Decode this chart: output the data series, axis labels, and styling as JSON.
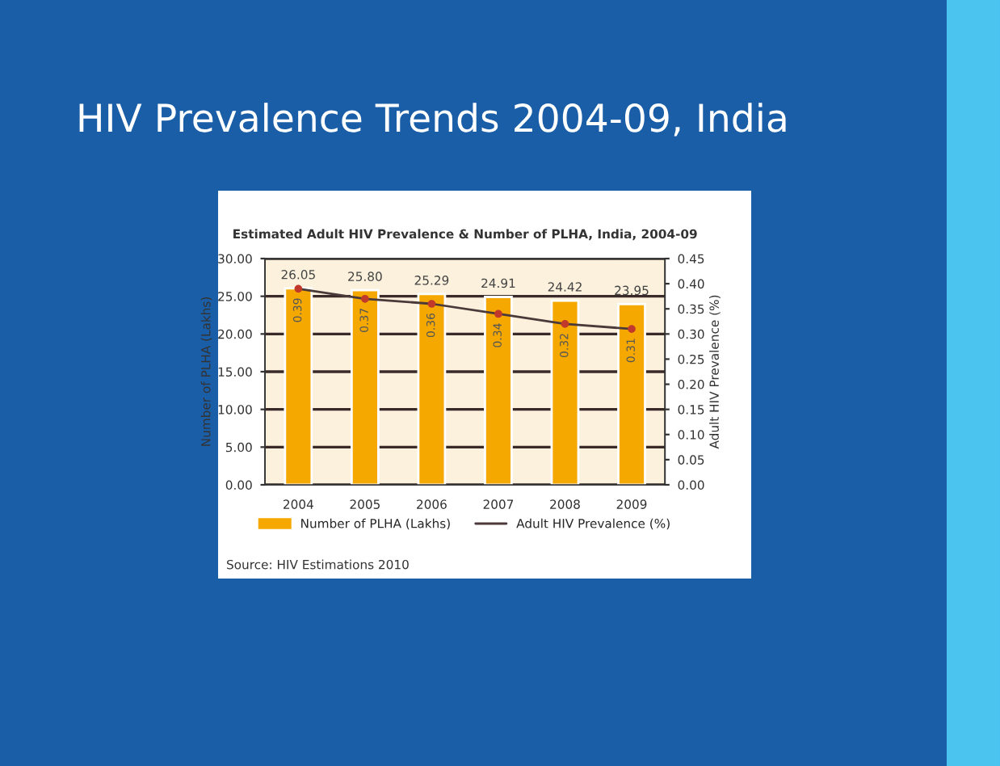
{
  "chart_data": {
    "type": "bar",
    "title": "HIV Prevalence Trends 2004-09, India",
    "subtitle": "Estimated Adult HIV Prevalence & Number of PLHA, India, 2004-09",
    "ylabel": "Number of PLHA (Lakhs)",
    "y2label": "Adult HIV Prevalence (%)",
    "categories": [
      "2004",
      "2005",
      "2006",
      "2007",
      "2008",
      "2009"
    ],
    "series": [
      {
        "name": "Number of PLHA (Lakhs)",
        "color": "#f5a800",
        "values": [
          26.05,
          25.8,
          25.29,
          24.91,
          24.42,
          23.95
        ],
        "value_labels": [
          "26.05",
          "25.80",
          "25.29",
          "24.91",
          "24.42",
          "23.95"
        ]
      },
      {
        "name": "Adult HIV Prevalence (%)",
        "type": "line",
        "axis": "y2",
        "color": "#4a3a3a",
        "marker": "circle",
        "values": [
          0.39,
          0.37,
          0.36,
          0.34,
          0.32,
          0.31
        ],
        "value_labels": [
          "0.39",
          "0.37",
          "0.36",
          "0.34",
          "0.32",
          "0.31"
        ]
      }
    ],
    "ylim": [
      0,
      30
    ],
    "yticks": [
      {
        "value": 0,
        "label": "0.00"
      },
      {
        "value": 5,
        "label": "5.00"
      },
      {
        "value": 10,
        "label": "10.00"
      },
      {
        "value": 15,
        "label": "15.00"
      },
      {
        "value": 20,
        "label": "20.00"
      },
      {
        "value": 25,
        "label": "25.00"
      },
      {
        "value": 30,
        "label": "30.00"
      }
    ],
    "y2lim": [
      0,
      0.45
    ],
    "y2ticks": [
      {
        "value": 0,
        "label": "0.00"
      },
      {
        "value": 0.05,
        "label": "0.05"
      },
      {
        "value": 0.1,
        "label": "0.10"
      },
      {
        "value": 0.15,
        "label": "0.15"
      },
      {
        "value": 0.2,
        "label": "0.20"
      },
      {
        "value": 0.25,
        "label": "0.25"
      },
      {
        "value": 0.3,
        "label": "0.30"
      },
      {
        "value": 0.35,
        "label": "0.35"
      },
      {
        "value": 0.4,
        "label": "0.40"
      },
      {
        "value": 0.45,
        "label": "0.45"
      }
    ],
    "grid": "y",
    "legend": "bottom",
    "annotations": [
      "Source: HIV Estimations 2010"
    ]
  }
}
